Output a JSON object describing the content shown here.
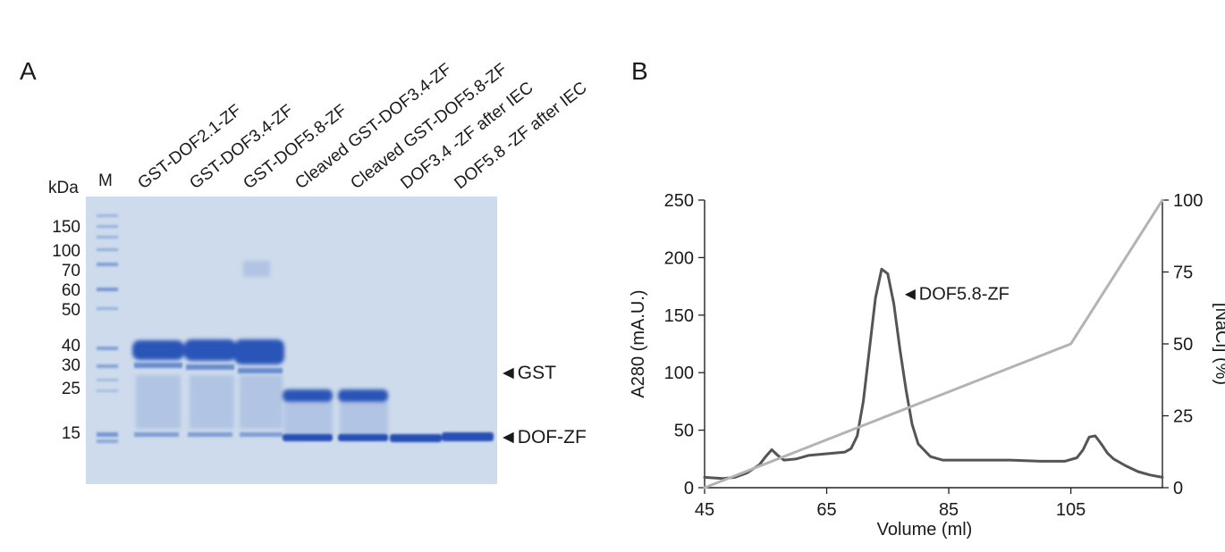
{
  "panelA": {
    "letter": "A",
    "kda_label": "kDa",
    "marker_label": "M",
    "lanes": [
      "GST-DOF2.1-ZF",
      "GST-DOF3.4-ZF",
      "GST-DOF5.8-ZF",
      "Cleaved GST-DOF3.4-ZF",
      "Cleaved GST-DOF5.8-ZF",
      "DOF3.4 -ZF after IEC",
      "DOF5.8 -ZF after IEC"
    ],
    "mw_markers": [
      "150",
      "100",
      "70",
      "60",
      "50",
      "40",
      "30",
      "25",
      "15"
    ],
    "band_labels": {
      "gst": "GST",
      "dofzf": "DOF-ZF"
    },
    "colors": {
      "gel": "#cfdcec",
      "band": "#2a55b8"
    }
  },
  "panelB": {
    "letter": "B",
    "chart_data": {
      "type": "line",
      "xlabel": "Volume (ml)",
      "ylabel": "A280 (mA.U.)",
      "y2label": "[NaCl] (%)",
      "xlim": [
        45,
        120
      ],
      "ylim": [
        0,
        250
      ],
      "y2lim": [
        0,
        100
      ],
      "xticks": [
        45,
        65,
        85,
        105
      ],
      "yticks": [
        0,
        50,
        100,
        150,
        200,
        250
      ],
      "y2ticks": [
        0,
        25,
        50,
        75,
        100
      ],
      "annotation": "DOF5.8-ZF",
      "series": [
        {
          "name": "A280",
          "color": "#555555",
          "x": [
            45,
            48,
            50,
            52,
            54,
            55,
            56,
            57,
            58,
            60,
            62,
            64,
            66,
            68,
            69,
            70,
            71,
            72,
            73,
            74,
            75,
            76,
            77,
            78,
            79,
            80,
            82,
            84,
            86,
            90,
            95,
            100,
            104,
            106,
            107,
            108,
            109,
            110,
            111,
            112,
            114,
            116,
            118,
            120
          ],
          "y": [
            9,
            8,
            9,
            13,
            20,
            27,
            33,
            28,
            24,
            25,
            28,
            29,
            30,
            31,
            34,
            45,
            75,
            120,
            165,
            190,
            186,
            160,
            120,
            85,
            55,
            38,
            27,
            24,
            24,
            24,
            24,
            23,
            23,
            26,
            33,
            44,
            45,
            38,
            30,
            25,
            19,
            14,
            11,
            9
          ]
        },
        {
          "name": "[NaCl]",
          "axis": "right",
          "color": "#b3b3b3",
          "x": [
            45,
            105,
            120
          ],
          "y": [
            0,
            50,
            100
          ]
        }
      ]
    }
  }
}
